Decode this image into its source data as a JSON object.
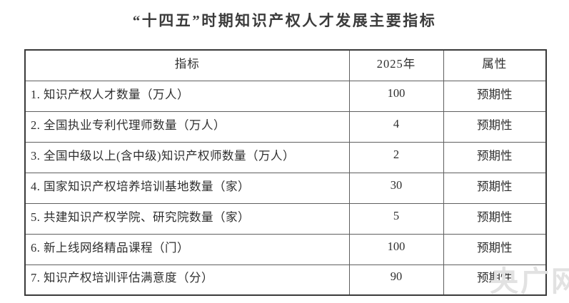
{
  "page": {
    "title": "“十四五”时期知识产权人才发展主要指标",
    "watermark": "央广网"
  },
  "table": {
    "headers": [
      "指标",
      "2025年",
      "属性"
    ],
    "rows": [
      {
        "indicator": "1. 知识产权人才数量（万人）",
        "year2025": "100",
        "attribute": "预期性"
      },
      {
        "indicator": "2. 全国执业专利代理师数量（万人）",
        "year2025": "4",
        "attribute": "预期性"
      },
      {
        "indicator": "3. 全国中级以上(含中级)知识产权师数量（万人）",
        "year2025": "2",
        "attribute": "预期性"
      },
      {
        "indicator": "4. 国家知识产权培养培训基地数量（家）",
        "year2025": "30",
        "attribute": "预期性"
      },
      {
        "indicator": "5. 共建知识产权学院、研究院数量（家）",
        "year2025": "5",
        "attribute": "预期性"
      },
      {
        "indicator": "6. 新上线网络精品课程（门）",
        "year2025": "100",
        "attribute": "预期性"
      },
      {
        "indicator": "7. 知识产权培训评估满意度（分）",
        "year2025": "90",
        "attribute": "预期性"
      }
    ]
  },
  "chart_data": {
    "type": "table",
    "title": "“十四五”时期知识产权人才发展主要指标",
    "columns": [
      "指标",
      "2025年",
      "属性"
    ],
    "rows": [
      [
        "1. 知识产权人才数量（万人）",
        "100",
        "预期性"
      ],
      [
        "2. 全国执业专利代理师数量（万人）",
        "4",
        "预期性"
      ],
      [
        "3. 全国中级以上(含中级)知识产权师数量（万人）",
        "2",
        "预期性"
      ],
      [
        "4. 国家知识产权培养培训基地数量（家）",
        "30",
        "预期性"
      ],
      [
        "5. 共建知识产权学院、研究院数量（家）",
        "5",
        "预期性"
      ],
      [
        "6. 新上线网络精品课程（门）",
        "100",
        "预期性"
      ],
      [
        "7. 知识产权培训评估满意度（分）",
        "90",
        "预期性"
      ]
    ]
  }
}
